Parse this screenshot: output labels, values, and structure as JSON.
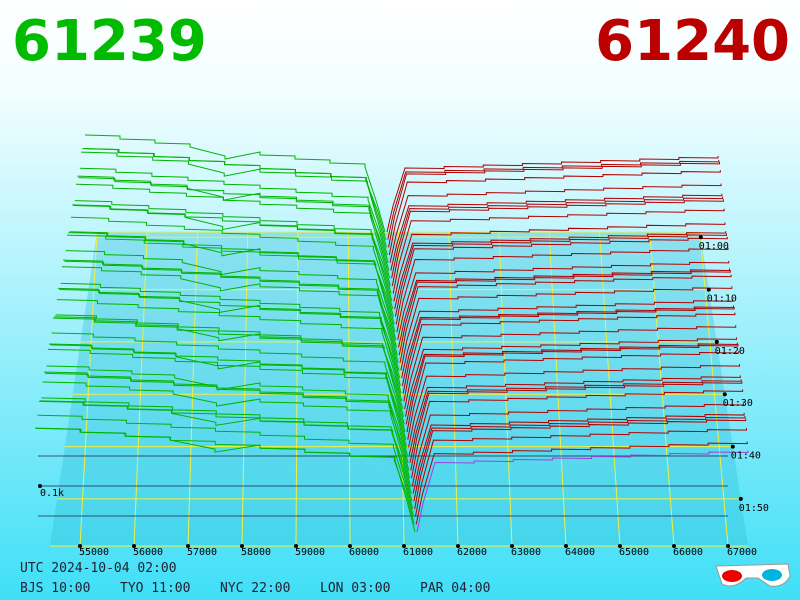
{
  "header": {
    "bid": 61239,
    "ask": 61240
  },
  "axis": {
    "price_ticks": [
      55000,
      56000,
      57000,
      58000,
      59000,
      60000,
      61000,
      62000,
      63000,
      64000,
      65000,
      66000,
      67000
    ],
    "time_ticks": [
      "01:00",
      "01:10",
      "01:20",
      "01:30",
      "01:40",
      "01:50"
    ],
    "depth_label": "0.1k"
  },
  "footer": {
    "utc": "UTC 2024-10-04 02:00",
    "zones": [
      "BJS 10:00",
      "TYO 11:00",
      "NYC 22:00",
      "LON 03:00",
      "PAR 04:00"
    ]
  }
}
